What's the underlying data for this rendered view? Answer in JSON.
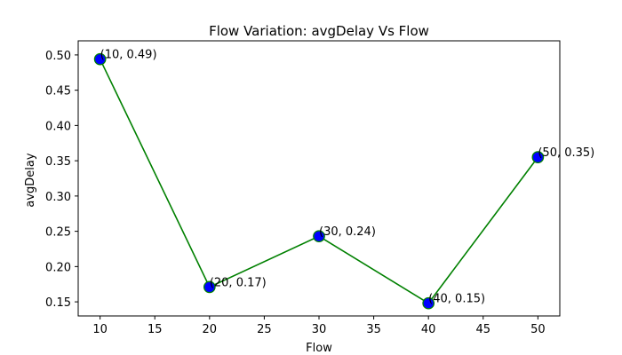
{
  "chart_data": {
    "type": "line",
    "title": "Flow Variation: avgDelay Vs Flow",
    "xlabel": "Flow",
    "ylabel": "avgDelay",
    "xlim": [
      8,
      52
    ],
    "ylim": [
      0.13,
      0.52
    ],
    "x_ticks": [
      10,
      15,
      20,
      25,
      30,
      35,
      40,
      45,
      50
    ],
    "y_ticks": [
      0.15,
      0.2,
      0.25,
      0.3,
      0.35,
      0.4,
      0.45,
      0.5
    ],
    "x_tick_labels": [
      "10",
      "15",
      "20",
      "25",
      "30",
      "35",
      "40",
      "45",
      "50"
    ],
    "y_tick_labels": [
      "0.15",
      "0.20",
      "0.25",
      "0.30",
      "0.35",
      "0.40",
      "0.45",
      "0.50"
    ],
    "x": [
      10,
      20,
      30,
      40,
      50
    ],
    "y": [
      0.494,
      0.171,
      0.243,
      0.148,
      0.355
    ],
    "data_labels": [
      "(10, 0.49)",
      "(20, 0.17)",
      "(30, 0.24)",
      "(40, 0.15)",
      "(50, 0.35)"
    ],
    "line_color": "#008000",
    "marker_fill": "#0000ff",
    "marker_edge": "#008000",
    "grid": false,
    "legend": "none"
  }
}
